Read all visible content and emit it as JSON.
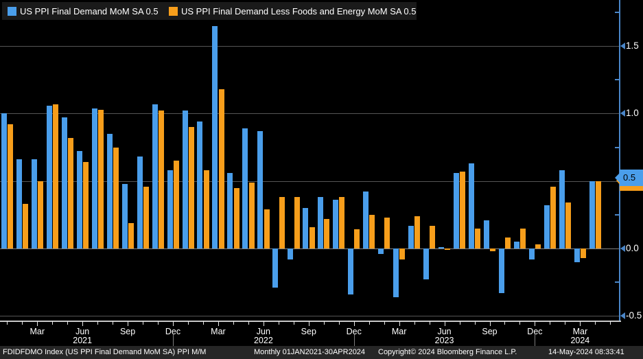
{
  "legend": {
    "items": [
      {
        "name": "us-ppi-final-demand",
        "label": "US PPI Final Demand MoM SA 0.5",
        "color": "#4A9EEB"
      },
      {
        "name": "us-ppi-core",
        "label": "US PPI Final Demand Less Foods and Energy MoM SA 0.5",
        "color": "#F79E1B"
      }
    ]
  },
  "y_axis": {
    "tick_labels": [
      "1.5",
      "1.0",
      "0.5",
      "0.0",
      "-0.5"
    ],
    "tick_values": [
      1.5,
      1.0,
      0.5,
      0.0,
      -0.5
    ],
    "minor_tick_values": [
      1.75,
      1.25,
      0.75,
      0.25,
      -0.25
    ],
    "last_value_badges": [
      {
        "value": "0.5",
        "color": "#4A9EEB"
      },
      {
        "value": "0.5",
        "color": "#F79E1B"
      }
    ]
  },
  "x_axis": {
    "labeled_months": [
      "Mar",
      "Jun",
      "Sep",
      "Dec"
    ],
    "year_labels": [
      {
        "text": "2021",
        "month_index": 5
      },
      {
        "text": "2022",
        "month_index": 17
      },
      {
        "text": "2023",
        "month_index": 29
      },
      {
        "text": "2024",
        "month_index": 38
      }
    ],
    "year_separator_month_indices": [
      11,
      23,
      35
    ]
  },
  "status_bar": {
    "segments": [
      "FDIDFDMO Index (US PPI Final Demand MoM SA) PPI M/M",
      "Monthly 01JAN2021-30APR2024",
      "Copyright© 2024 Bloomberg Finance L.P.",
      "14-May-2024 08:33:41"
    ]
  },
  "chart_data": {
    "type": "bar",
    "title": "",
    "xlabel": "",
    "ylabel": "",
    "grid": "horizontal",
    "legend_position": "top-left",
    "ylim": [
      -0.55,
      1.85
    ],
    "yticks": [
      -0.5,
      0.0,
      0.5,
      1.0,
      1.5
    ],
    "x": [
      "Jan 2021",
      "Feb 2021",
      "Mar 2021",
      "Apr 2021",
      "May 2021",
      "Jun 2021",
      "Jul 2021",
      "Aug 2021",
      "Sep 2021",
      "Oct 2021",
      "Nov 2021",
      "Dec 2021",
      "Jan 2022",
      "Feb 2022",
      "Mar 2022",
      "Apr 2022",
      "May 2022",
      "Jun 2022",
      "Jul 2022",
      "Aug 2022",
      "Sep 2022",
      "Oct 2022",
      "Nov 2022",
      "Dec 2022",
      "Jan 2023",
      "Feb 2023",
      "Mar 2023",
      "Apr 2023",
      "May 2023",
      "Jun 2023",
      "Jul 2023",
      "Aug 2023",
      "Sep 2023",
      "Oct 2023",
      "Nov 2023",
      "Dec 2023",
      "Jan 2024",
      "Feb 2024",
      "Mar 2024",
      "Apr 2024"
    ],
    "series": [
      {
        "name": "US PPI Final Demand MoM SA",
        "color": "#4A9EEB",
        "last_value": 0.5,
        "values": [
          1.0,
          0.66,
          0.66,
          1.06,
          0.97,
          0.72,
          1.04,
          0.85,
          0.48,
          0.68,
          1.07,
          0.58,
          1.02,
          0.94,
          1.65,
          0.56,
          0.89,
          0.87,
          -0.29,
          -0.08,
          0.3,
          0.38,
          0.36,
          -0.34,
          0.42,
          -0.04,
          -0.36,
          0.17,
          -0.23,
          0.01,
          0.56,
          0.63,
          0.21,
          -0.33,
          0.05,
          -0.08,
          0.32,
          0.58,
          -0.1,
          0.5
        ]
      },
      {
        "name": "US PPI Final Demand Less Foods and Energy MoM SA",
        "color": "#F79E1B",
        "last_value": 0.5,
        "values": [
          0.92,
          0.33,
          0.5,
          1.07,
          0.82,
          0.64,
          1.03,
          0.75,
          0.19,
          0.46,
          1.02,
          0.65,
          0.9,
          0.58,
          1.18,
          0.45,
          0.49,
          0.29,
          0.38,
          0.38,
          0.16,
          0.22,
          0.38,
          0.14,
          0.25,
          0.23,
          -0.08,
          0.24,
          0.17,
          -0.01,
          0.57,
          0.15,
          -0.02,
          0.08,
          0.15,
          0.03,
          0.46,
          0.34,
          -0.07,
          0.5
        ]
      }
    ]
  }
}
